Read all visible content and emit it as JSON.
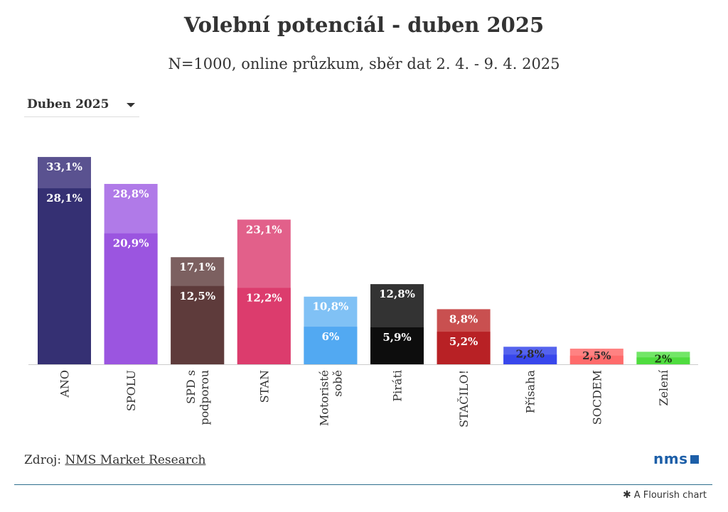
{
  "title": "Volební potenciál - duben 2025",
  "subtitle": "N=1000, online průzkum, sběr dat 2. 4. - 9. 4. 2025",
  "filter": {
    "selected": "Duben 2025"
  },
  "source": {
    "prefix": "Zdroj:",
    "link": "NMS Market Research"
  },
  "logo": {
    "text": "nms"
  },
  "footer": {
    "credit": "A Flourish chart",
    "icon": "flourish-asterisk-icon"
  },
  "chart_data": {
    "type": "bar",
    "ylim": [
      0,
      35
    ],
    "grid": false,
    "categories": [
      "ANO",
      "SPOLU",
      "SPD s podporou",
      "STAN",
      "Motoristé sobě",
      "Piráti",
      "STAČILO!",
      "Přísaha",
      "SOCDEM",
      "Zelení"
    ],
    "series": [
      {
        "values": [
          28.1,
          20.9,
          12.5,
          12.2,
          6.0,
          5.9,
          5.2,
          null,
          null,
          null
        ],
        "labels": [
          "28,1%",
          "20,9%",
          "12,5%",
          "12,2%",
          "6%",
          "5,9%",
          "5,2%",
          "",
          "",
          ""
        ]
      },
      {
        "values": [
          33.1,
          28.8,
          17.1,
          23.1,
          10.8,
          12.8,
          8.8,
          2.8,
          2.5,
          2.0
        ],
        "labels": [
          "33,1%",
          "28,8%",
          "17,1%",
          "23,1%",
          "10,8%",
          "12,8%",
          "8,8%",
          "2,8%",
          "2,5%",
          "2%"
        ]
      }
    ],
    "colors": {
      "inner": [
        "#353073",
        "#9b55e0",
        "#5e3b3b",
        "#dc3c6d",
        "#52a9f2",
        "#0d0d0d",
        "#b82125",
        "#3847ec",
        "#ff6b6b",
        "#4fdc3f"
      ],
      "outer": [
        "#5a5290",
        "#b07ae8",
        "#7c6060",
        "#e2608a",
        "#80c1f5",
        "#333333",
        "#c95050",
        "#5563ee",
        "#ff8282",
        "#72e667"
      ]
    }
  }
}
